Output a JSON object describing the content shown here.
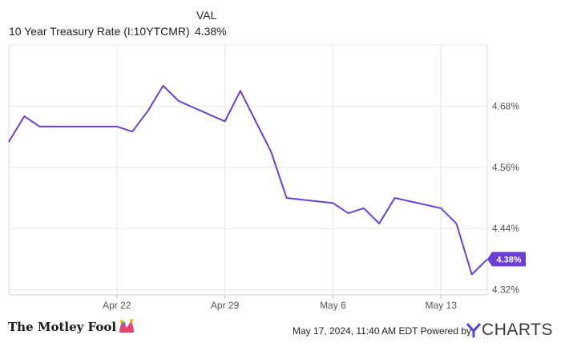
{
  "legend": {
    "value_header": "VAL",
    "series_name": "10 Year Treasury Rate (I:10YTCMR)",
    "series_value": "4.38%"
  },
  "chart_data": {
    "type": "line",
    "title": "",
    "xlabel": "",
    "ylabel": "",
    "x_ticks": [
      "Apr 22",
      "Apr 29",
      "May 6",
      "May 13"
    ],
    "y_ticks": [
      "4.32%",
      "4.44%",
      "4.56%",
      "4.68%"
    ],
    "ylim": [
      4.31,
      4.8
    ],
    "xlim": [
      "2024-04-15",
      "2024-05-16"
    ],
    "grid": true,
    "series": [
      {
        "name": "10 Year Treasury Rate (I:10YTCMR)",
        "color": "#6a3fd8",
        "points": [
          {
            "x": "2024-04-15",
            "y": 4.61
          },
          {
            "x": "2024-04-16",
            "y": 4.66
          },
          {
            "x": "2024-04-17",
            "y": 4.64
          },
          {
            "x": "2024-04-18",
            "y": 4.64
          },
          {
            "x": "2024-04-19",
            "y": 4.64
          },
          {
            "x": "2024-04-22",
            "y": 4.64
          },
          {
            "x": "2024-04-23",
            "y": 4.63
          },
          {
            "x": "2024-04-24",
            "y": 4.67
          },
          {
            "x": "2024-04-25",
            "y": 4.72
          },
          {
            "x": "2024-04-26",
            "y": 4.69
          },
          {
            "x": "2024-04-29",
            "y": 4.65
          },
          {
            "x": "2024-04-30",
            "y": 4.71
          },
          {
            "x": "2024-05-01",
            "y": 4.65
          },
          {
            "x": "2024-05-02",
            "y": 4.59
          },
          {
            "x": "2024-05-03",
            "y": 4.5
          },
          {
            "x": "2024-05-06",
            "y": 4.49
          },
          {
            "x": "2024-05-07",
            "y": 4.47
          },
          {
            "x": "2024-05-08",
            "y": 4.48
          },
          {
            "x": "2024-05-09",
            "y": 4.45
          },
          {
            "x": "2024-05-10",
            "y": 4.5
          },
          {
            "x": "2024-05-13",
            "y": 4.48
          },
          {
            "x": "2024-05-14",
            "y": 4.45
          },
          {
            "x": "2024-05-15",
            "y": 4.35
          },
          {
            "x": "2024-05-16",
            "y": 4.38
          }
        ]
      }
    ],
    "last_value_label": "4.38%",
    "line_color": "#6a3fd8"
  },
  "footer": {
    "brand": "The Motley Fool",
    "credit": "May 17, 2024, 11:40 AM EDT  Powered by",
    "ycharts_text": "CHARTS",
    "ycharts_logo_color": "#5b3fd8"
  }
}
